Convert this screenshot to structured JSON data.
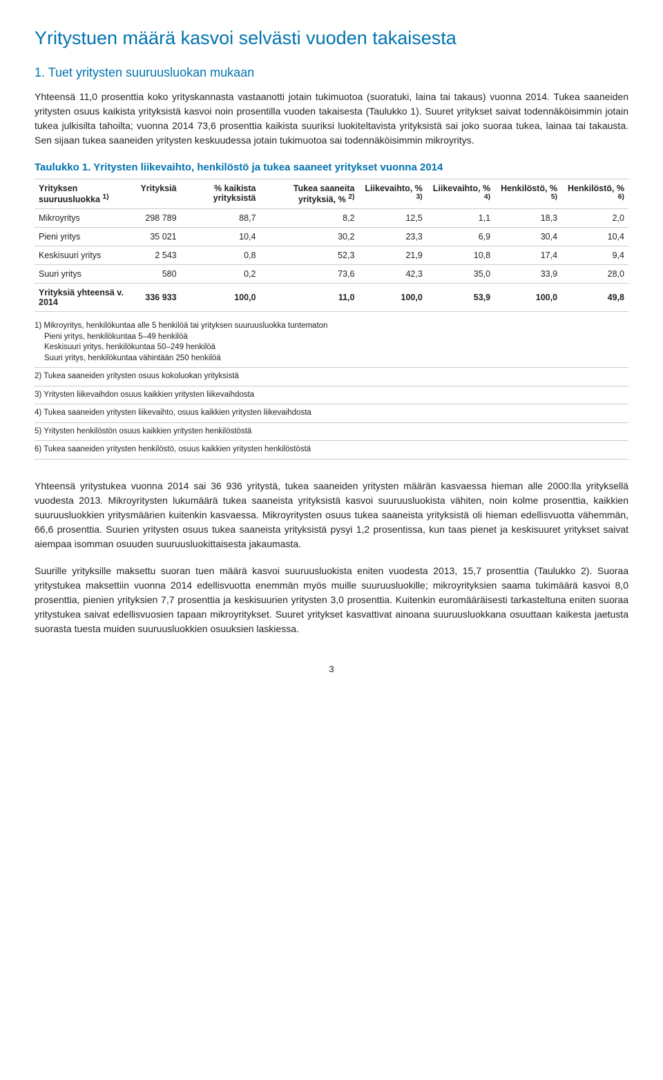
{
  "title": "Yritystuen määrä kasvoi selvästi vuoden takaisesta",
  "section1": {
    "heading": "1. Tuet yritysten suuruusluokan mukaan",
    "p1": "Yhteensä 11,0 prosenttia koko yrityskannasta vastaanotti jotain tukimuotoa (suoratuki, laina tai takaus) vuonna 2014. Tukea saaneiden yritysten osuus kaikista yrityksistä kasvoi noin prosentilla vuoden takaisesta (Taulukko 1). Suuret yritykset saivat todennäköisimmin jotain tukea julkisilta tahoilta; vuonna 2014 73,6 prosenttia kaikista suuriksi luokiteltavista yrityksistä sai joko suoraa tukea, lainaa tai takausta. Sen sijaan tukea saaneiden yritysten keskuudessa jotain tukimuotoa sai todennäköisimmin mikroyritys."
  },
  "table1": {
    "title": "Taulukko 1. Yritysten liikevaihto, henkilöstö ja tukea saaneet yritykset vuonna 2014",
    "columns": [
      "Yrityksen suuruusluokka 1)",
      "Yrityksiä",
      "% kaikista yrityksistä",
      "Tukea saaneita yrityksiä, % 2)",
      "Liikevaihto, % 3)",
      "Liikevaihto, % 4)",
      "Henkilöstö, % 5)",
      "Henkilöstö, % 6)"
    ],
    "rows": [
      {
        "cells": [
          "Mikroyritys",
          "298 789",
          "88,7",
          "8,2",
          "12,5",
          "1,1",
          "18,3",
          "2,0"
        ],
        "bold": false
      },
      {
        "cells": [
          "Pieni yritys",
          "35 021",
          "10,4",
          "30,2",
          "23,3",
          "6,9",
          "30,4",
          "10,4"
        ],
        "bold": false
      },
      {
        "cells": [
          "Keskisuuri yritys",
          "2 543",
          "0,8",
          "52,3",
          "21,9",
          "10,8",
          "17,4",
          "9,4"
        ],
        "bold": false
      },
      {
        "cells": [
          "Suuri yritys",
          "580",
          "0,2",
          "73,6",
          "42,3",
          "35,0",
          "33,9",
          "28,0"
        ],
        "bold": false
      },
      {
        "cells": [
          "Yrityksiä yhteensä v. 2014",
          "336 933",
          "100,0",
          "11,0",
          "100,0",
          "53,9",
          "100,0",
          "49,8"
        ],
        "bold": true
      }
    ],
    "footnotes": [
      {
        "main": "1) Mikroyritys, henkilökuntaa alle 5 henkilöä tai yrityksen suuruusluokka tuntematon",
        "sub": [
          "Pieni yritys, henkilökuntaa 5–49 henkilöä",
          "Keskisuuri yritys, henkilökuntaa 50–249 henkilöä",
          "Suuri yritys, henkilökuntaa vähintään 250 henkilöä"
        ]
      },
      {
        "main": "2) Tukea saaneiden yritysten osuus kokoluokan yrityksistä",
        "sub": []
      },
      {
        "main": "3) Yritysten liikevaihdon osuus kaikkien yritysten liikevaihdosta",
        "sub": []
      },
      {
        "main": "4) Tukea saaneiden yritysten liikevaihto, osuus kaikkien yritysten liikevaihdosta",
        "sub": []
      },
      {
        "main": "5) Yritysten henkilöstön osuus kaikkien yritysten henkilöstöstä",
        "sub": []
      },
      {
        "main": "6) Tukea saaneiden yritysten henkilöstö, osuus kaikkien yritysten henkilöstöstä",
        "sub": []
      }
    ]
  },
  "p2": "Yhteensä yritystukea vuonna 2014 sai 36 936 yritystä, tukea saaneiden yritysten määrän kasvaessa hieman alle 2000:lla yrityksellä vuodesta 2013. Mikroyritysten lukumäärä tukea saaneista yrityksistä kasvoi suuruusluokista vähiten, noin kolme prosenttia, kaikkien suuruusluokkien yritysmäärien kuitenkin kasvaessa. Mikroyritysten osuus tukea saaneista yrityksistä oli hieman edellisvuotta vähemmän, 66,6 prosenttia. Suurien yritysten osuus tukea saaneista yrityksistä pysyi 1,2 prosentissa, kun taas pienet ja keskisuuret yritykset saivat aiempaa isomman osuuden suuruusluokittaisesta jakaumasta.",
  "p3": "Suurille yrityksille maksettu suoran tuen määrä kasvoi suuruusluokista eniten vuodesta 2013, 15,7 prosenttia (Taulukko 2). Suoraa yritystukea maksettiin vuonna 2014 edellisvuotta enemmän myös muille suuruusluokille; mikroyrityksien saama tukimäärä kasvoi 8,0 prosenttia, pienien yrityksien 7,7 prosenttia ja keskisuurien yritysten 3,0 prosenttia. Kuitenkin euromääräisesti tarkasteltuna eniten suoraa yritystukea saivat edellisvuosien tapaan mikroyritykset. Suuret yritykset kasvattivat ainoana suuruusluokkana osuuttaan kaikesta jaetusta suorasta tuesta muiden suuruusluokkien osuuksien laskiessa.",
  "pageNumber": "3"
}
